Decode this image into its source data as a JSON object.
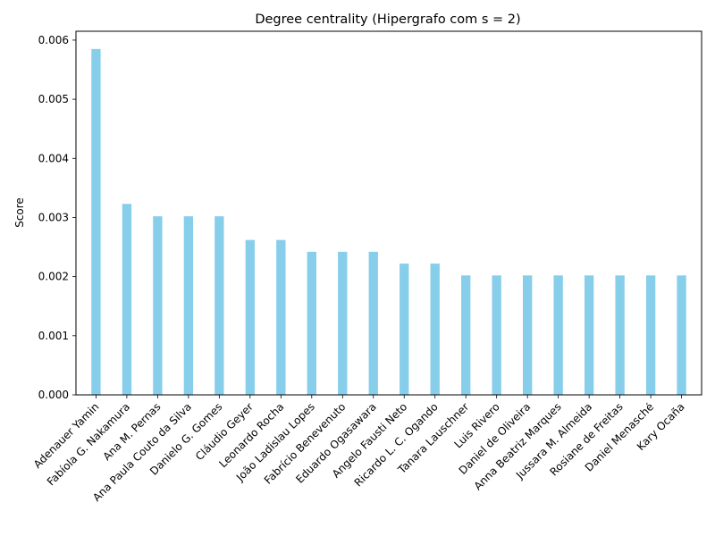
{
  "chart_data": {
    "type": "bar",
    "title": "Degree centrality (Hipergrafo com s = 2)",
    "xlabel": "",
    "ylabel": "Score",
    "ylim": [
      0,
      0.00615
    ],
    "yticks": [
      "0.000",
      "0.001",
      "0.002",
      "0.003",
      "0.004",
      "0.005",
      "0.006"
    ],
    "ytick_values": [
      0,
      0.001,
      0.002,
      0.003,
      0.004,
      0.005,
      0.006
    ],
    "grid": false,
    "bar_color": "#87ceeb",
    "categories": [
      "Adenauer Yamin",
      "Fabíola G. Nakamura",
      "Ana M. Pernas",
      "Ana Paula Couto da Silva",
      "Danielo G. Gomes",
      "Cláudio Geyer",
      "Leonardo Rocha",
      "João Ladislau Lopes",
      "Fabrício Benevenuto",
      "Eduardo Ogasawara",
      "Angelo Fausti Neto",
      "Ricardo L. C. Ogando",
      "Tanara Lauschner",
      "Luis Rivero",
      "Daniel de Oliveira",
      "Anna Beatriz Marques",
      "Jussara M. Almeida",
      "Rosiane de Freitas",
      "Daniel Menasché",
      "Kary Ocaña"
    ],
    "values": [
      0.00585,
      0.00323,
      0.00302,
      0.00302,
      0.00302,
      0.00262,
      0.00262,
      0.00242,
      0.00242,
      0.00242,
      0.00222,
      0.00222,
      0.00202,
      0.00202,
      0.00202,
      0.00202,
      0.00202,
      0.00202,
      0.00202,
      0.00202
    ]
  }
}
